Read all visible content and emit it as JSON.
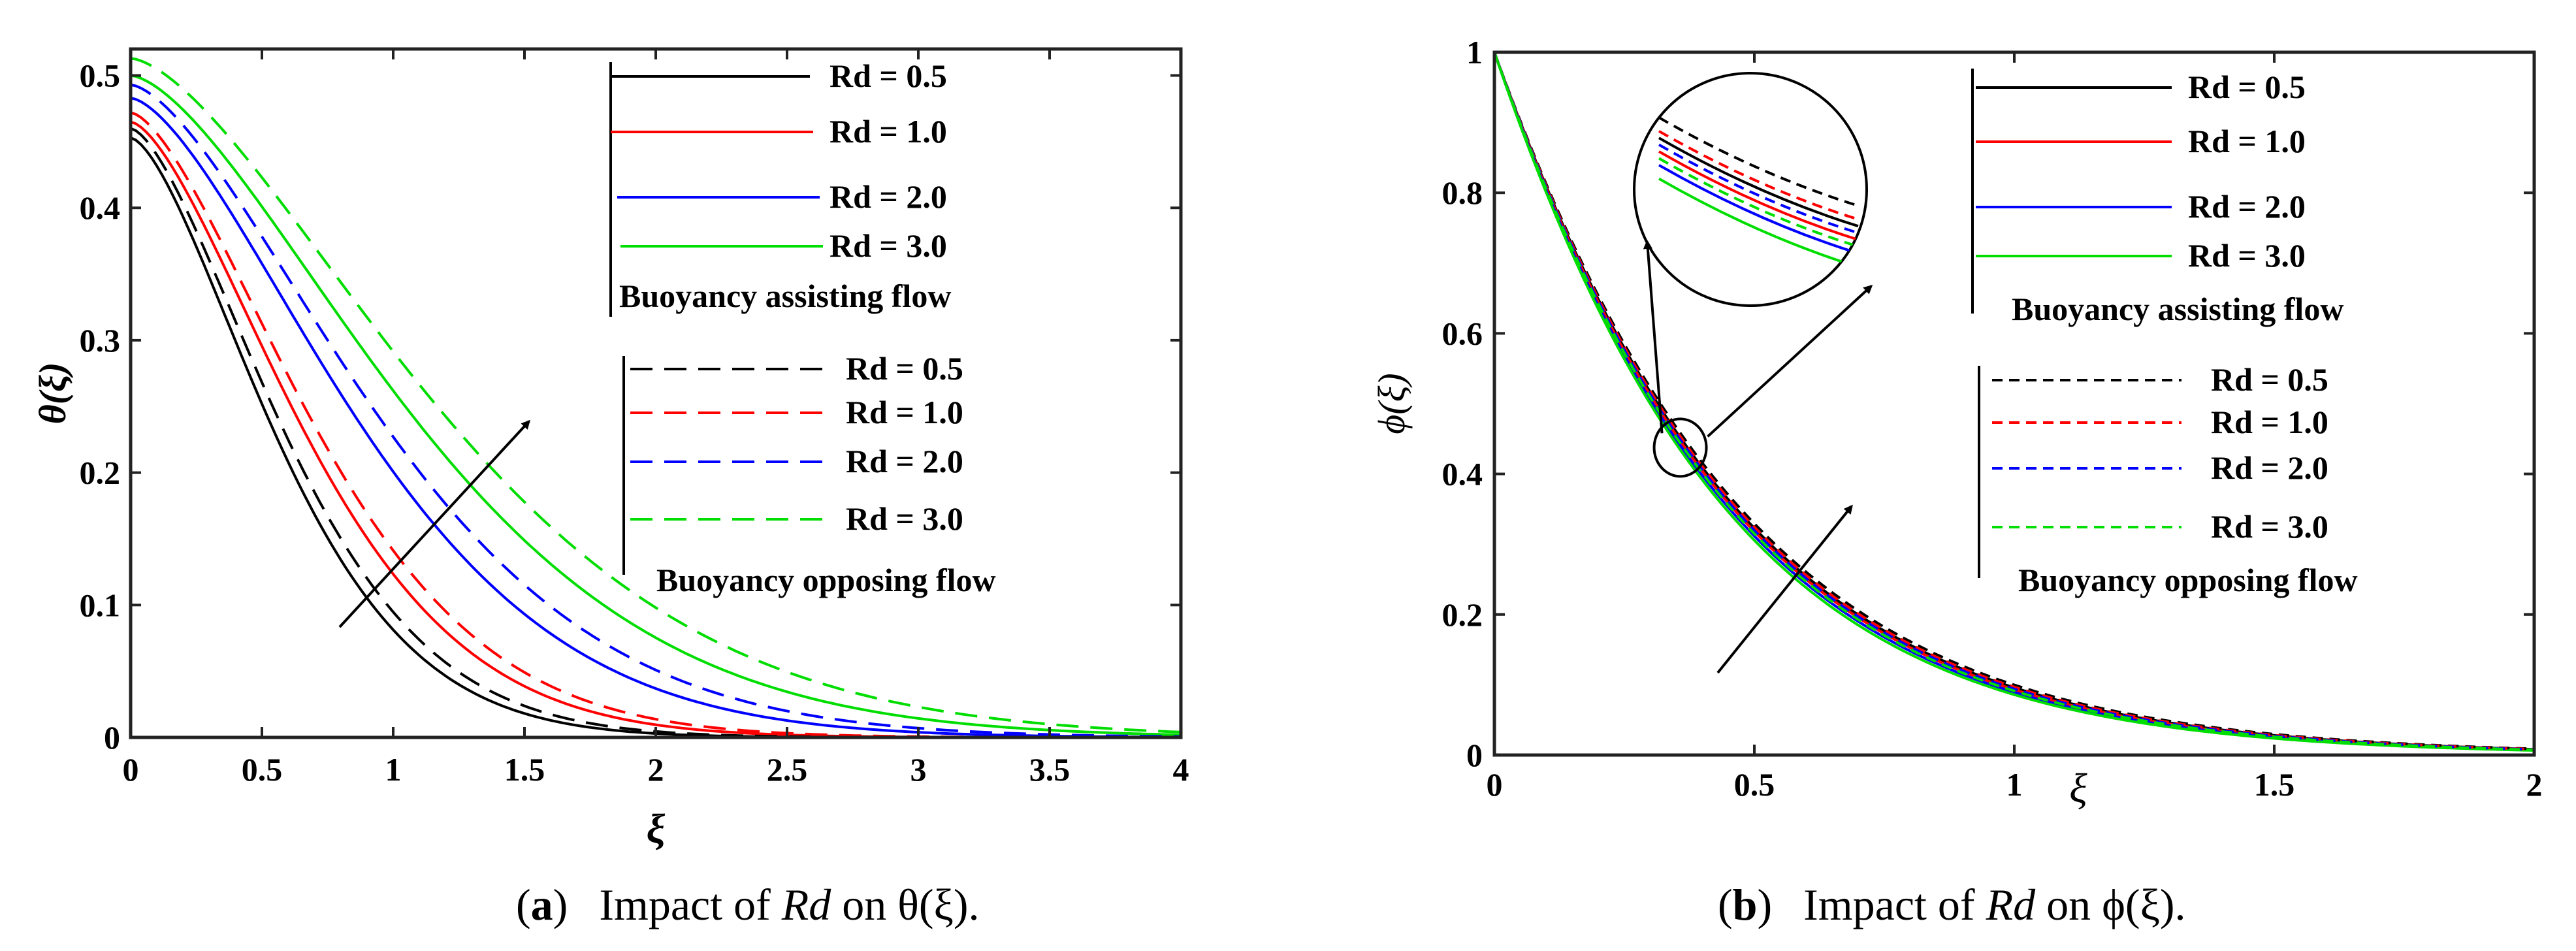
{
  "chart_data": [
    {
      "type": "line",
      "panel": "a",
      "caption_tag": "a",
      "caption_text": "Impact of Rd on θ(ξ).",
      "caption_parts": [
        "Impact of ",
        "Rd",
        " on θ(ξ)."
      ],
      "xlabel": "ξ",
      "ylabel": "θ(ξ)",
      "xlim": [
        0,
        4
      ],
      "ylim": [
        0,
        0.52
      ],
      "xticks": [
        0,
        0.5,
        1,
        1.5,
        2,
        2.5,
        3,
        3.5,
        4
      ],
      "xtick_labels": [
        "0",
        "0.5",
        "1",
        "1.5",
        "2",
        "2.5",
        "3",
        "3.5",
        "4"
      ],
      "yticks": [
        0,
        0.1,
        0.2,
        0.3,
        0.4,
        0.5
      ],
      "ytick_labels": [
        "0",
        "0.1",
        "0.2",
        "0.3",
        "0.4",
        "0.5"
      ],
      "grid": false,
      "legend_groups": [
        {
          "title": "Buoyancy assisting flow",
          "style": "solid",
          "entries": [
            "Rd = 0.5",
            "Rd = 1.0",
            "Rd = 2.0",
            "Rd = 3.0"
          ]
        },
        {
          "title": "Buoyancy opposing flow",
          "style": "dashed",
          "entries": [
            "Rd = 0.5",
            "Rd = 1.0",
            "Rd = 2.0",
            "Rd = 3.0"
          ]
        }
      ],
      "annotation": "arrow indicating increasing Rd",
      "series": [
        {
          "name": "Rd = 0.5 (assisting)",
          "color": "#000000",
          "style": "solid",
          "theta0": 0.453,
          "decay": 0.75,
          "curve": 2.2
        },
        {
          "name": "Rd = 1.0 (assisting)",
          "color": "#ff0000",
          "style": "solid",
          "theta0": 0.465,
          "decay": 0.86,
          "curve": 2.1
        },
        {
          "name": "Rd = 2.0 (assisting)",
          "color": "#0000ff",
          "style": "solid",
          "theta0": 0.483,
          "decay": 1.07,
          "curve": 1.95
        },
        {
          "name": "Rd = 3.0 (assisting)",
          "color": "#00dd00",
          "style": "solid",
          "theta0": 0.5,
          "decay": 1.26,
          "curve": 1.85
        },
        {
          "name": "Rd = 0.5 (opposing)",
          "color": "#000000",
          "style": "dashed",
          "theta0": 0.46,
          "decay": 0.78,
          "curve": 2.15
        },
        {
          "name": "Rd = 1.0 (opposing)",
          "color": "#ff0000",
          "style": "dashed",
          "theta0": 0.472,
          "decay": 0.9,
          "curve": 2.05
        },
        {
          "name": "Rd = 2.0 (opposing)",
          "color": "#0000ff",
          "style": "dashed",
          "theta0": 0.493,
          "decay": 1.14,
          "curve": 1.9
        },
        {
          "name": "Rd = 3.0 (opposing)",
          "color": "#00dd00",
          "style": "dashed",
          "theta0": 0.513,
          "decay": 1.35,
          "curve": 1.8
        }
      ]
    },
    {
      "type": "line",
      "panel": "b",
      "caption_tag": "b",
      "caption_text": "Impact of Rd on ϕ(ξ).",
      "caption_parts": [
        "Impact of ",
        "Rd",
        " on ϕ(ξ)."
      ],
      "xlabel": "ξ",
      "ylabel": "ϕ(ξ)",
      "xlim": [
        0,
        2
      ],
      "ylim": [
        0,
        1
      ],
      "xticks": [
        0,
        0.5,
        1,
        1.5,
        2
      ],
      "xtick_labels": [
        "0",
        "0.5",
        "1",
        "1.5",
        "2"
      ],
      "yticks": [
        0,
        0.2,
        0.4,
        0.6,
        0.8,
        1
      ],
      "ytick_labels": [
        "0",
        "0.2",
        "0.4",
        "0.6",
        "0.8",
        "1"
      ],
      "grid": false,
      "legend_groups": [
        {
          "title": "Buoyancy assisting flow",
          "style": "solid",
          "entries": [
            "Rd = 0.5",
            "Rd = 1.0",
            "Rd = 2.0",
            "Rd = 3.0"
          ]
        },
        {
          "title": "Buoyancy opposing flow",
          "style": "dashed",
          "entries": [
            "Rd = 0.5",
            "Rd = 1.0",
            "Rd = 2.0",
            "Rd = 3.0"
          ]
        }
      ],
      "annotation": "zoom inset near ξ ≈ 0.35, ϕ ≈ 0.43 and arrow indicating increasing Rd",
      "zoom_center": [
        0.36,
        0.43
      ],
      "series": [
        {
          "name": "Rd = 0.5 (assisting)",
          "color": "#000000",
          "style": "solid",
          "phi0": 1.0,
          "rate": 2.42,
          "inset_offset": 0.018
        },
        {
          "name": "Rd = 1.0 (assisting)",
          "color": "#ff0000",
          "style": "solid",
          "phi0": 1.0,
          "rate": 2.45,
          "inset_offset": 0.01
        },
        {
          "name": "Rd = 2.0 (assisting)",
          "color": "#0000ff",
          "style": "solid",
          "phi0": 1.0,
          "rate": 2.49,
          "inset_offset": 0.002
        },
        {
          "name": "Rd = 3.0 (assisting)",
          "color": "#00dd00",
          "style": "solid",
          "phi0": 1.0,
          "rate": 2.53,
          "inset_offset": -0.006
        },
        {
          "name": "Rd = 0.5 (opposing)",
          "color": "#000000",
          "style": "dashed",
          "phi0": 1.0,
          "rate": 2.38,
          "inset_offset": 0.03
        },
        {
          "name": "Rd = 1.0 (opposing)",
          "color": "#ff0000",
          "style": "dashed",
          "phi0": 1.0,
          "rate": 2.41,
          "inset_offset": 0.022
        },
        {
          "name": "Rd = 2.0 (opposing)",
          "color": "#0000ff",
          "style": "dashed",
          "phi0": 1.0,
          "rate": 2.44,
          "inset_offset": 0.014
        },
        {
          "name": "Rd = 3.0 (opposing)",
          "color": "#00dd00",
          "style": "dashed",
          "phi0": 1.0,
          "rate": 2.47,
          "inset_offset": 0.006
        }
      ]
    }
  ]
}
